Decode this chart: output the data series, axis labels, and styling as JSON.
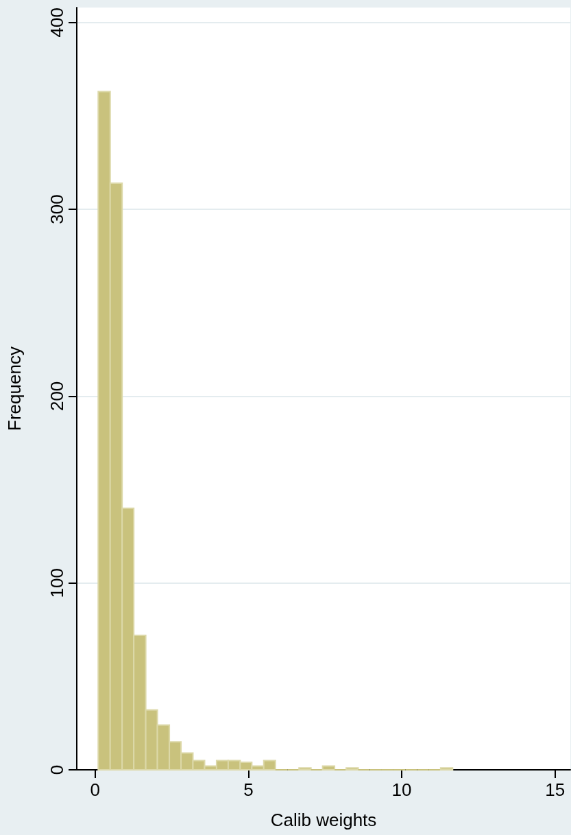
{
  "chart_data": {
    "type": "histogram",
    "xlabel": "Calib weights",
    "ylabel": "Frequency",
    "color": "#c9c27d",
    "bins": [
      0.1,
      0.49,
      0.88,
      1.26,
      1.65,
      2.03,
      2.42,
      2.8,
      3.19,
      3.57,
      3.96,
      4.34,
      4.73,
      5.11,
      5.5,
      5.88,
      6.27,
      6.65,
      7.04,
      7.42,
      7.81,
      8.19,
      8.58,
      8.96,
      9.35,
      9.73,
      10.12,
      10.5,
      10.89,
      11.27,
      11.66
    ],
    "values": [
      363,
      314,
      140,
      72,
      32,
      24,
      15,
      9,
      5,
      2,
      5,
      5,
      4,
      2,
      5,
      0,
      0,
      1,
      0,
      2,
      0,
      1,
      0,
      0,
      0,
      0,
      0,
      0,
      0,
      1
    ],
    "xlim": [
      -0.6,
      15.5
    ],
    "xticks": [
      0,
      5,
      10,
      15
    ],
    "ylim": [
      0,
      408
    ],
    "yticks": [
      0,
      100,
      200,
      300,
      400
    ],
    "grid": "y"
  }
}
